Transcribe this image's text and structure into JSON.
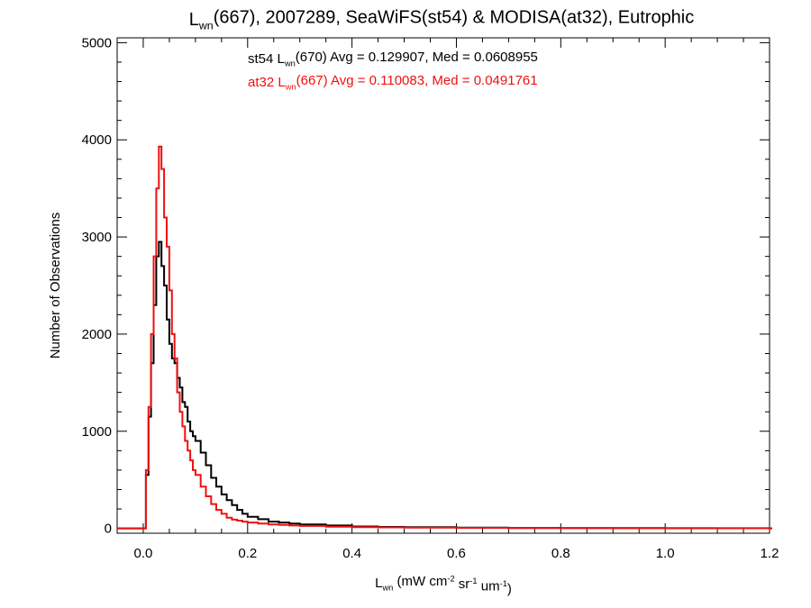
{
  "chart_data": {
    "type": "line",
    "title": {
      "parts": [
        {
          "text": "L",
          "sub": false
        },
        {
          "text": "wn",
          "sub": true
        },
        {
          "text": "(667), 2007289, SeaWiFS(st54) & MODISA(at32), Eutrophic",
          "sub": false
        }
      ]
    },
    "xlabel": {
      "parts": [
        {
          "text": "L",
          "sub": false
        },
        {
          "text": "wn",
          "sub": true
        },
        {
          "text": " (mW cm",
          "sub": false
        },
        {
          "text": "-2",
          "sup": true
        },
        {
          "text": " sr",
          "sub": false
        },
        {
          "text": "-1",
          "sup": true
        },
        {
          "text": " um",
          "sub": false
        },
        {
          "text": "-1",
          "sup": true
        },
        {
          "text": ")",
          "sub": false
        }
      ]
    },
    "ylabel": "Number of Observations",
    "xlim": [
      -0.05,
      1.2
    ],
    "ylim": [
      -50,
      5050
    ],
    "xticks": [
      "0.0",
      "0.2",
      "0.4",
      "0.6",
      "0.8",
      "1.0",
      "1.2"
    ],
    "yticks": [
      "0",
      "1000",
      "2000",
      "3000",
      "4000",
      "5000"
    ],
    "grid": false,
    "bin_width": 0.005,
    "series": [
      {
        "name": "st54",
        "color": "#000000",
        "annotation": {
          "parts": [
            {
              "text": "st54 L",
              "sub": false
            },
            {
              "text": "wn",
              "sub": true
            },
            {
              "text": "(670) Avg = 0.129907, Med = 0.0608955",
              "sub": false
            }
          ]
        },
        "x": [
          0.0,
          0.005,
          0.01,
          0.015,
          0.02,
          0.025,
          0.03,
          0.035,
          0.04,
          0.045,
          0.05,
          0.055,
          0.06,
          0.065,
          0.07,
          0.075,
          0.08,
          0.085,
          0.09,
          0.095,
          0.1,
          0.11,
          0.12,
          0.13,
          0.14,
          0.15,
          0.16,
          0.17,
          0.18,
          0.19,
          0.2,
          0.22,
          0.24,
          0.26,
          0.28,
          0.3,
          0.35,
          0.4,
          0.45,
          0.5,
          0.6,
          0.7,
          0.8,
          0.9,
          1.0,
          1.1,
          1.2
        ],
        "values": [
          0,
          550,
          1150,
          1700,
          2300,
          2800,
          2950,
          2700,
          2500,
          2150,
          1900,
          1750,
          1700,
          1550,
          1450,
          1300,
          1250,
          1100,
          1000,
          950,
          900,
          780,
          650,
          520,
          430,
          350,
          290,
          240,
          190,
          150,
          120,
          95,
          70,
          60,
          50,
          40,
          30,
          20,
          15,
          12,
          8,
          5,
          4,
          3,
          2,
          2,
          0
        ]
      },
      {
        "name": "at32",
        "color": "#ee1111",
        "annotation": {
          "parts": [
            {
              "text": "at32 L",
              "sub": false
            },
            {
              "text": "wn",
              "sub": true
            },
            {
              "text": "(667) Avg = 0.110083, Med = 0.0491761",
              "sub": false
            }
          ]
        },
        "x": [
          0.0,
          0.005,
          0.01,
          0.015,
          0.02,
          0.025,
          0.03,
          0.035,
          0.04,
          0.045,
          0.05,
          0.055,
          0.06,
          0.065,
          0.07,
          0.075,
          0.08,
          0.085,
          0.09,
          0.095,
          0.1,
          0.11,
          0.12,
          0.13,
          0.14,
          0.15,
          0.16,
          0.17,
          0.18,
          0.19,
          0.2,
          0.22,
          0.24,
          0.26,
          0.28,
          0.3,
          0.35,
          0.4,
          0.45,
          0.5,
          0.6,
          0.7,
          0.8,
          0.9,
          1.0,
          1.1,
          1.2
        ],
        "values": [
          0,
          600,
          1250,
          2000,
          2800,
          3500,
          3930,
          3700,
          3200,
          2900,
          2450,
          2000,
          1750,
          1400,
          1200,
          1050,
          900,
          800,
          700,
          600,
          550,
          430,
          330,
          250,
          190,
          150,
          110,
          90,
          80,
          70,
          60,
          50,
          40,
          35,
          30,
          25,
          18,
          12,
          10,
          8,
          6,
          4,
          3,
          2,
          2,
          1,
          0
        ]
      }
    ]
  }
}
